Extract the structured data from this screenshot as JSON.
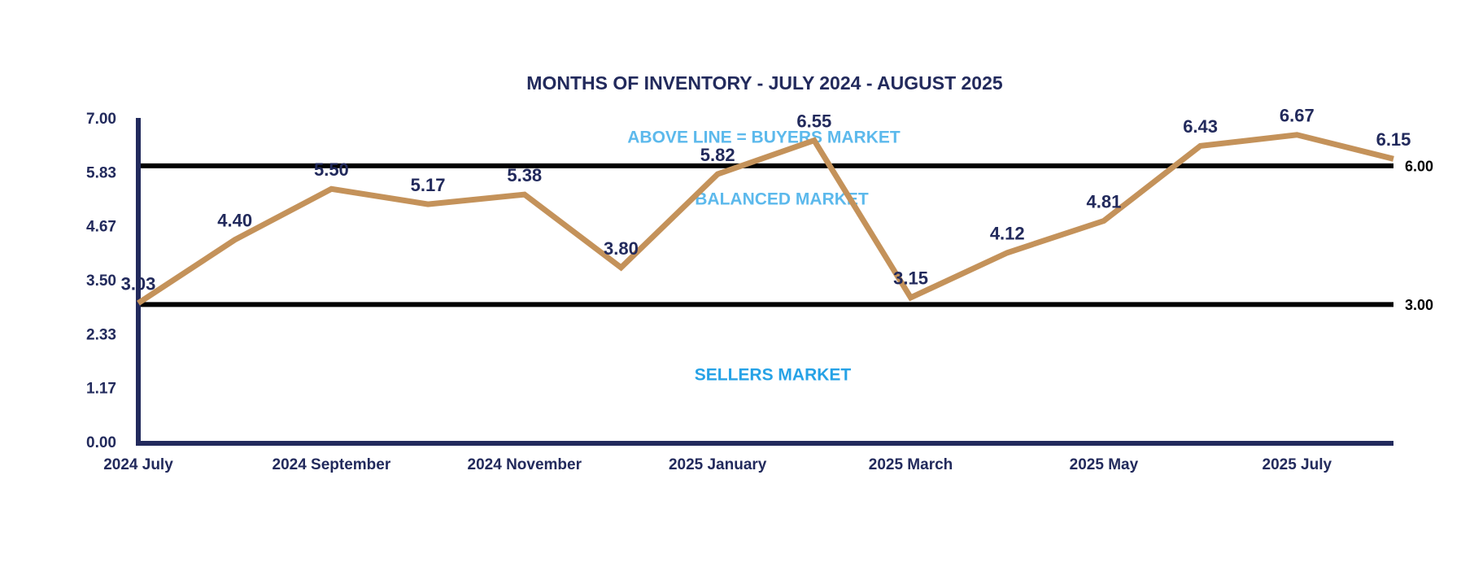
{
  "chart_data": {
    "type": "line",
    "title": "MONTHS OF INVENTORY - JULY 2024 - AUGUST 2025",
    "categories": [
      "2024 July",
      null,
      "2024 September",
      null,
      "2024 November",
      null,
      "2025 January",
      null,
      "2025 March",
      null,
      "2025 May",
      null,
      "2025 July",
      null
    ],
    "series": [
      {
        "color": "#c4925a",
        "values": [
          3.03,
          4.4,
          5.5,
          5.17,
          5.38,
          3.8,
          5.82,
          6.55,
          3.15,
          4.12,
          4.81,
          6.43,
          6.67,
          6.15
        ],
        "value_labels": [
          "3.03",
          "4.40",
          "5.50",
          "5.17",
          "5.38",
          "3.80",
          "5.82",
          "6.55",
          "3.15",
          "4.12",
          "4.81",
          "6.43",
          "6.67",
          "6.15"
        ]
      }
    ],
    "ylim": [
      0,
      7
    ],
    "yticks": [
      {
        "value": 0,
        "label": "0.00"
      },
      {
        "value": 1.17,
        "label": "1.17"
      },
      {
        "value": 2.33,
        "label": "2.33"
      },
      {
        "value": 3.5,
        "label": "3.50"
      },
      {
        "value": 4.67,
        "label": "4.67"
      },
      {
        "value": 5.83,
        "label": "5.83"
      },
      {
        "value": 7,
        "label": "7.00"
      }
    ],
    "reference_lines": [
      {
        "value": 6,
        "label": "6.00"
      },
      {
        "value": 3,
        "label": "3.00"
      }
    ],
    "annotations": [
      {
        "text": "ABOVE LINE = BUYERS MARKET",
        "color": "#5cb9ec"
      },
      {
        "text": "BALANCED MARKET",
        "color": "#5cb9ec"
      },
      {
        "text": "SELLERS MARKET",
        "color": "#26a2e6"
      }
    ]
  }
}
